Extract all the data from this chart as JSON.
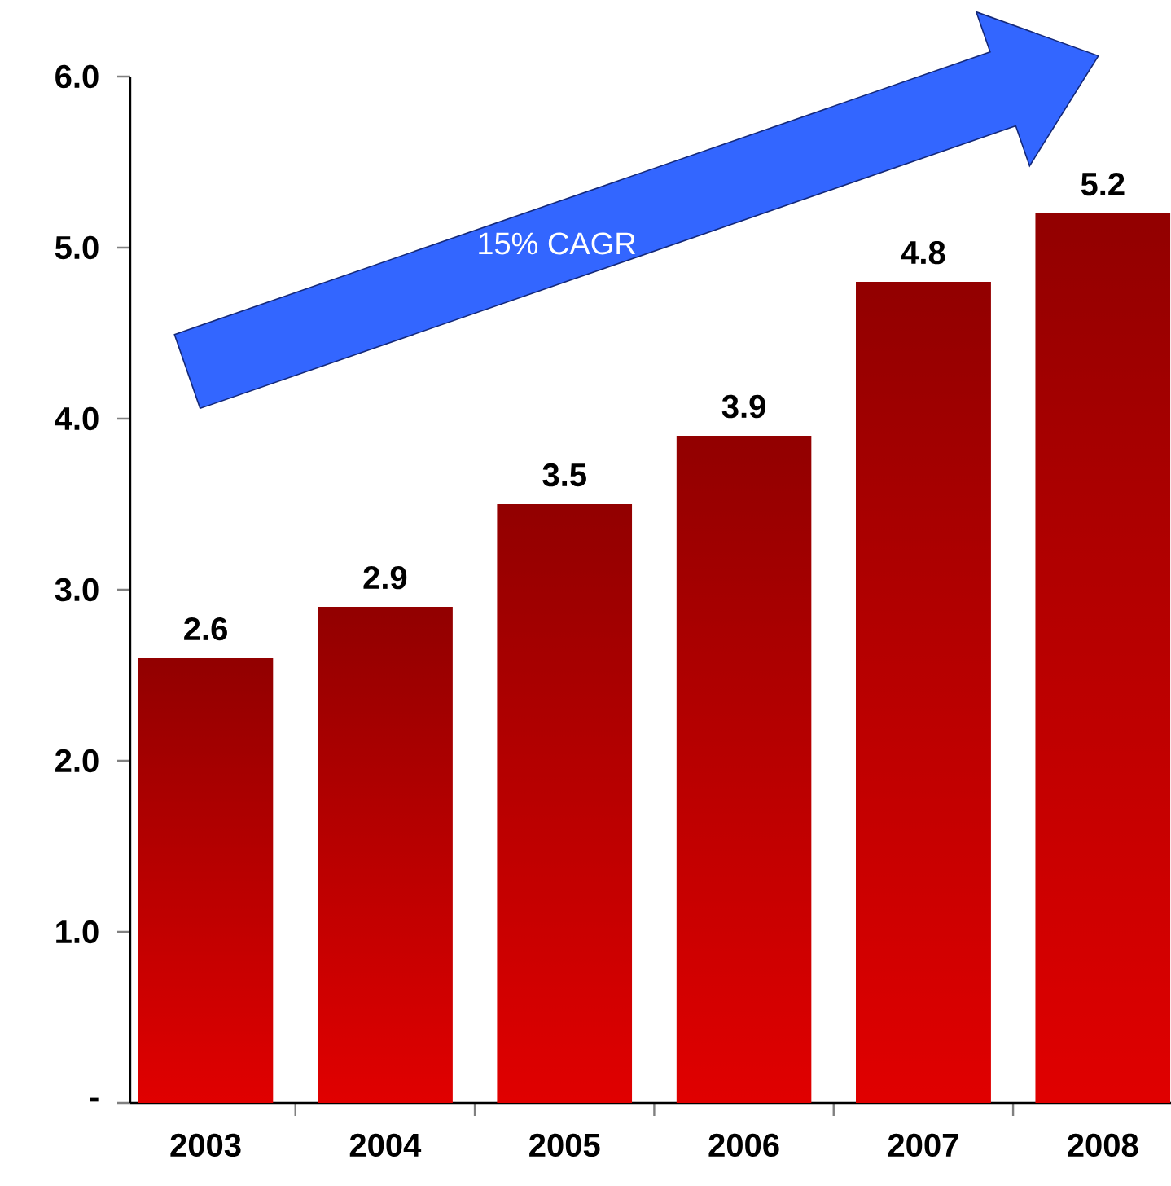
{
  "chart_data": {
    "type": "bar",
    "categories": [
      "2003",
      "2004",
      "2005",
      "2006",
      "2007",
      "2008"
    ],
    "values": [
      2.6,
      2.9,
      3.5,
      3.9,
      4.8,
      5.2
    ],
    "color": "#e00000",
    "ylim": [
      0,
      6
    ],
    "yticks": [
      {
        "value": 0,
        "label": "-"
      },
      {
        "value": 1,
        "label": "1.0"
      },
      {
        "value": 2,
        "label": "2.0"
      },
      {
        "value": 3,
        "label": "3.0"
      },
      {
        "value": 4,
        "label": "4.0"
      },
      {
        "value": 5,
        "label": "5.0"
      },
      {
        "value": 6,
        "label": "6.0"
      }
    ],
    "data_labels": true,
    "annotations": [
      "15% CAGR"
    ]
  }
}
